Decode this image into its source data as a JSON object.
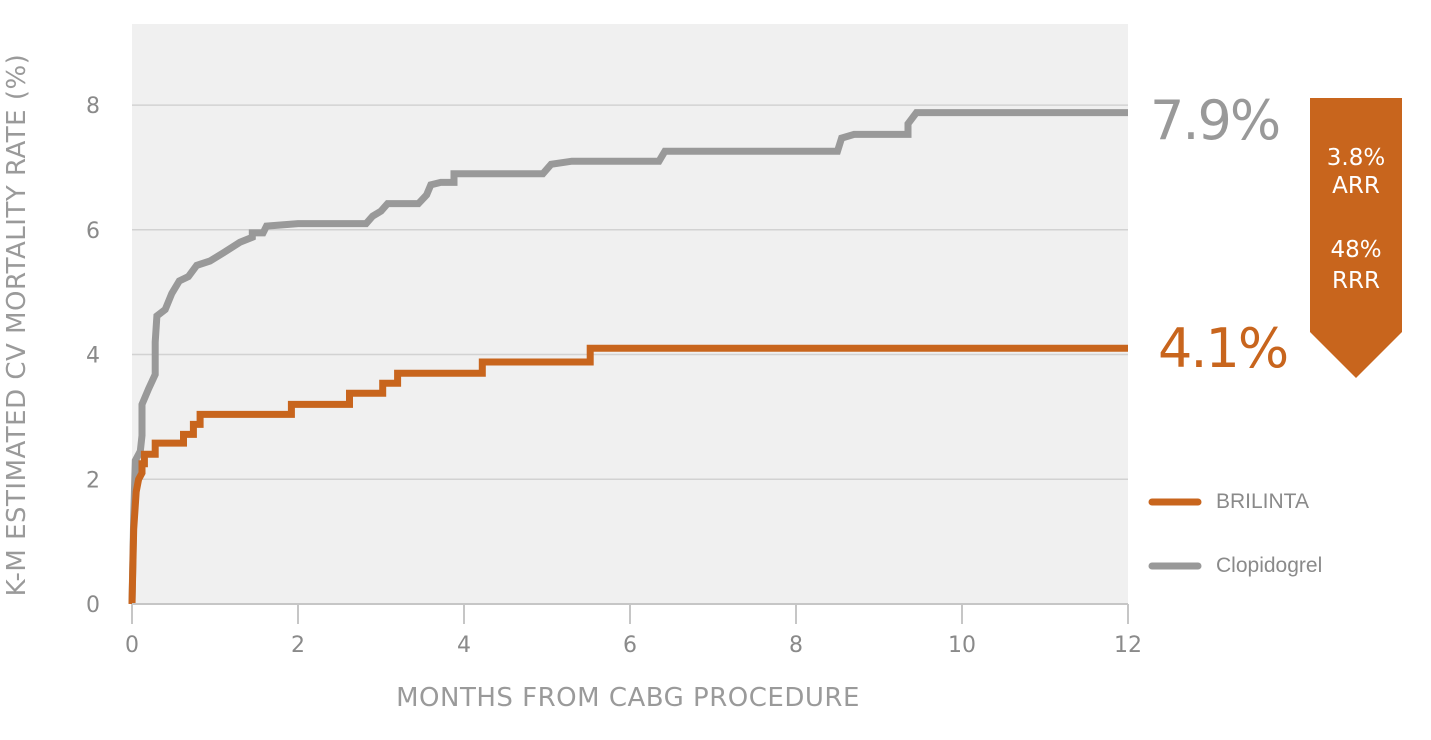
{
  "colors": {
    "brilinta": "#c8651d",
    "clopidogrel": "#999999",
    "plot_bg": "#f0f0f0",
    "grid": "#d2d2d2",
    "badge": "#c8651d"
  },
  "chart_data": {
    "type": "line",
    "title": "",
    "xlabel": "MONTHS FROM CABG PROCEDURE",
    "ylabel": "K-M ESTIMATED CV MORTALITY RATE (%)",
    "xlim": [
      0,
      12
    ],
    "ylim": [
      0,
      9.3
    ],
    "x_ticks": [
      "0",
      "2",
      "4",
      "6",
      "8",
      "10",
      "12"
    ],
    "y_ticks": [
      "0",
      "2",
      "4",
      "6",
      "8"
    ],
    "grid": "horizontal",
    "legend_position": "right",
    "series": [
      {
        "name": "BRILINTA",
        "color": "#c8651d",
        "end_label": "4.1%",
        "points": [
          [
            0.0,
            0.0
          ],
          [
            0.02,
            1.2
          ],
          [
            0.05,
            1.8
          ],
          [
            0.08,
            2.0
          ],
          [
            0.12,
            2.1
          ],
          [
            0.12,
            2.25
          ],
          [
            0.15,
            2.25
          ],
          [
            0.15,
            2.4
          ],
          [
            0.28,
            2.4
          ],
          [
            0.28,
            2.58
          ],
          [
            0.62,
            2.58
          ],
          [
            0.62,
            2.72
          ],
          [
            0.74,
            2.72
          ],
          [
            0.74,
            2.88
          ],
          [
            0.82,
            2.88
          ],
          [
            0.82,
            3.04
          ],
          [
            1.92,
            3.04
          ],
          [
            1.92,
            3.2
          ],
          [
            2.62,
            3.2
          ],
          [
            2.62,
            3.38
          ],
          [
            3.02,
            3.38
          ],
          [
            3.02,
            3.54
          ],
          [
            3.2,
            3.54
          ],
          [
            3.2,
            3.7
          ],
          [
            4.22,
            3.7
          ],
          [
            4.22,
            3.88
          ],
          [
            5.52,
            3.88
          ],
          [
            5.52,
            4.1
          ],
          [
            12.0,
            4.1
          ]
        ]
      },
      {
        "name": "Clopidogrel",
        "color": "#999999",
        "end_label": "7.9%",
        "points": [
          [
            0.0,
            0.0
          ],
          [
            0.02,
            1.4
          ],
          [
            0.04,
            2.3
          ],
          [
            0.1,
            2.45
          ],
          [
            0.12,
            2.7
          ],
          [
            0.12,
            3.2
          ],
          [
            0.2,
            3.45
          ],
          [
            0.28,
            3.68
          ],
          [
            0.28,
            4.2
          ],
          [
            0.3,
            4.62
          ],
          [
            0.4,
            4.72
          ],
          [
            0.48,
            4.98
          ],
          [
            0.57,
            5.18
          ],
          [
            0.68,
            5.25
          ],
          [
            0.78,
            5.43
          ],
          [
            0.94,
            5.5
          ],
          [
            1.1,
            5.63
          ],
          [
            1.3,
            5.8
          ],
          [
            1.45,
            5.88
          ],
          [
            1.45,
            5.95
          ],
          [
            1.58,
            5.95
          ],
          [
            1.62,
            6.06
          ],
          [
            2.0,
            6.1
          ],
          [
            2.82,
            6.1
          ],
          [
            2.9,
            6.22
          ],
          [
            3.0,
            6.3
          ],
          [
            3.08,
            6.42
          ],
          [
            3.45,
            6.42
          ],
          [
            3.55,
            6.56
          ],
          [
            3.6,
            6.72
          ],
          [
            3.72,
            6.76
          ],
          [
            3.88,
            6.76
          ],
          [
            3.88,
            6.9
          ],
          [
            4.95,
            6.9
          ],
          [
            5.05,
            7.05
          ],
          [
            5.3,
            7.1
          ],
          [
            6.35,
            7.1
          ],
          [
            6.42,
            7.26
          ],
          [
            8.5,
            7.26
          ],
          [
            8.55,
            7.47
          ],
          [
            8.7,
            7.53
          ],
          [
            9.35,
            7.53
          ],
          [
            9.35,
            7.7
          ],
          [
            9.45,
            7.88
          ],
          [
            12.0,
            7.88
          ]
        ]
      }
    ],
    "badge": {
      "arr_value": "3.8%",
      "arr_label": "ARR",
      "rrr_value": "48%",
      "rrr_label": "RRR"
    }
  }
}
